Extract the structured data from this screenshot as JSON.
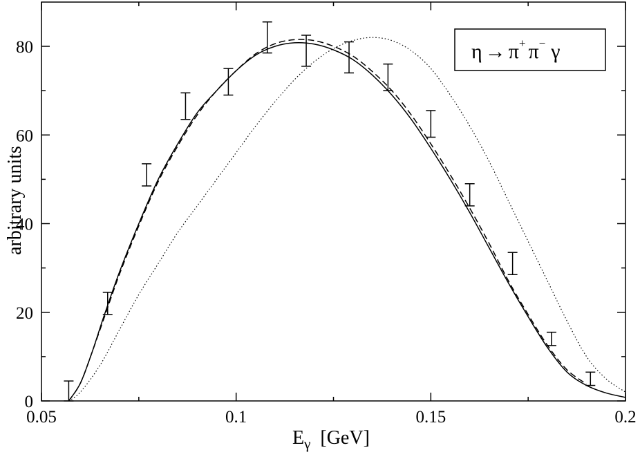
{
  "chart_data": {
    "type": "line",
    "xlabel": "E",
    "xlabel_sub": "γ",
    "xlabel_unit": "[GeV]",
    "ylabel": "arbitrary units",
    "xlim": [
      0.05,
      0.2
    ],
    "ylim": [
      0,
      90
    ],
    "x_ticks": [
      0.05,
      0.1,
      0.15,
      0.2
    ],
    "x_tick_labels": [
      "0.05",
      "0.1",
      "0.15",
      "0.2"
    ],
    "y_ticks": [
      0,
      20,
      40,
      60,
      80
    ],
    "y_tick_labels": [
      "0",
      "20",
      "40",
      "60",
      "80"
    ],
    "legend": {
      "placement": "top-right",
      "eta": "η",
      "arrow": "→",
      "pi": "π",
      "plus": "+",
      "minus": "−",
      "gamma": "γ"
    },
    "series": [
      {
        "style": "solid",
        "x": [
          0.057,
          0.06,
          0.063,
          0.066,
          0.07,
          0.075,
          0.08,
          0.085,
          0.09,
          0.095,
          0.1,
          0.105,
          0.11,
          0.115,
          0.12,
          0.125,
          0.13,
          0.135,
          0.14,
          0.145,
          0.15,
          0.155,
          0.16,
          0.165,
          0.17,
          0.175,
          0.18,
          0.185,
          0.19,
          0.195,
          0.2
        ],
        "y": [
          0,
          4,
          11,
          19,
          29,
          40,
          50,
          58,
          65,
          70,
          74.5,
          78,
          80,
          80.8,
          80.5,
          79.2,
          77,
          73.5,
          69,
          63.5,
          57,
          50,
          42.5,
          34.5,
          26.5,
          19,
          12,
          6.5,
          3.5,
          1.8,
          0.8
        ]
      },
      {
        "style": "dashed",
        "x": [
          0.057,
          0.06,
          0.063,
          0.066,
          0.07,
          0.075,
          0.08,
          0.085,
          0.09,
          0.095,
          0.1,
          0.105,
          0.11,
          0.115,
          0.12,
          0.125,
          0.13,
          0.135,
          0.14,
          0.145,
          0.15,
          0.155,
          0.16,
          0.165,
          0.17,
          0.175,
          0.18,
          0.185,
          0.19
        ],
        "y": [
          0,
          4,
          11,
          18.5,
          28.5,
          39.5,
          49.5,
          57.5,
          64.5,
          70,
          74.5,
          78.3,
          80.6,
          81.5,
          81.3,
          80,
          77.8,
          74.3,
          70,
          64.5,
          58,
          51,
          43.5,
          35.5,
          27,
          19.5,
          12.5,
          7,
          3.8
        ]
      },
      {
        "style": "dotted",
        "x": [
          0.057,
          0.06,
          0.065,
          0.07,
          0.075,
          0.08,
          0.085,
          0.09,
          0.095,
          0.1,
          0.105,
          0.11,
          0.115,
          0.12,
          0.125,
          0.13,
          0.135,
          0.14,
          0.145,
          0.15,
          0.155,
          0.16,
          0.165,
          0.17,
          0.175,
          0.18,
          0.185,
          0.19,
          0.195,
          0.2
        ],
        "y": [
          0,
          2,
          8,
          16,
          24,
          31,
          38,
          44,
          50,
          56,
          62,
          67.5,
          72.5,
          76.5,
          79.5,
          81.3,
          82,
          81.3,
          79,
          75,
          69,
          62,
          54,
          45,
          36,
          27,
          18,
          10,
          5,
          2
        ]
      }
    ],
    "data_points": {
      "x": [
        0.057,
        0.067,
        0.077,
        0.087,
        0.098,
        0.108,
        0.118,
        0.129,
        0.139,
        0.15,
        0.16,
        0.171,
        0.181,
        0.191
      ],
      "y": [
        1.5,
        22,
        51,
        66.5,
        72,
        82,
        79,
        77.5,
        73,
        62.5,
        46.5,
        31,
        14,
        5
      ],
      "err": [
        3,
        2.5,
        2.5,
        3,
        3,
        3.5,
        3.5,
        3.5,
        3,
        3,
        2.5,
        2.5,
        1.5,
        1.5
      ]
    }
  }
}
